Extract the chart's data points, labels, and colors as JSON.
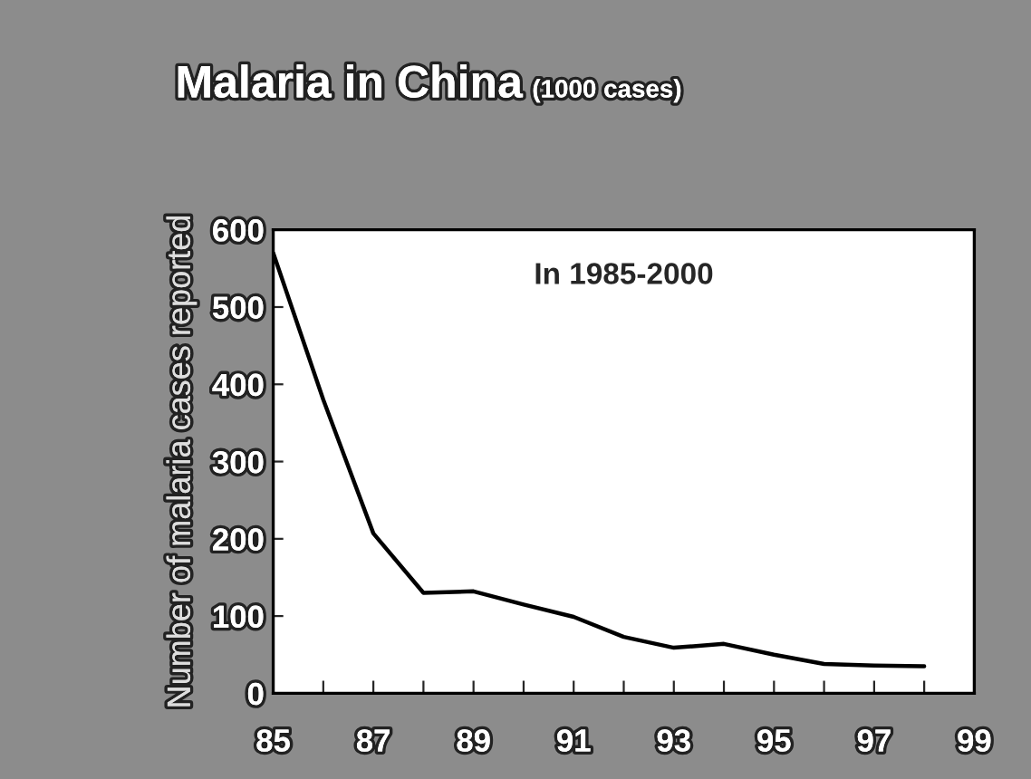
{
  "chart_data": {
    "type": "line",
    "title": "Malaria in China",
    "subtitle": "(1000 cases)",
    "ylabel": "Number of malaria cases reported",
    "annotations": [
      "In 1985-2000"
    ],
    "x": [
      85,
      86,
      87,
      88,
      89,
      90,
      91,
      92,
      93,
      94,
      95,
      96,
      97,
      98
    ],
    "series": [
      {
        "color": "#000000",
        "values": [
          570,
          380,
          207,
          130,
          132,
          115,
          99,
          73,
          59,
          64,
          50,
          38,
          36,
          35
        ]
      }
    ],
    "xlim": [
      85,
      99
    ],
    "xticks": [
      85,
      {
        "value": 86,
        "label": null
      },
      87,
      {
        "value": 88,
        "label": null
      },
      89,
      {
        "value": 90,
        "label": null
      },
      91,
      {
        "value": 92,
        "label": null
      },
      93,
      {
        "value": 94,
        "label": null
      },
      95,
      {
        "value": 96,
        "label": null
      },
      97,
      {
        "value": 98,
        "label": null
      },
      99
    ],
    "ylim": [
      0,
      600
    ],
    "yticks": [
      0,
      100,
      200,
      300,
      400,
      500,
      600
    ],
    "grid": false,
    "legend": false,
    "marker": "none",
    "line_style": "solid"
  }
}
